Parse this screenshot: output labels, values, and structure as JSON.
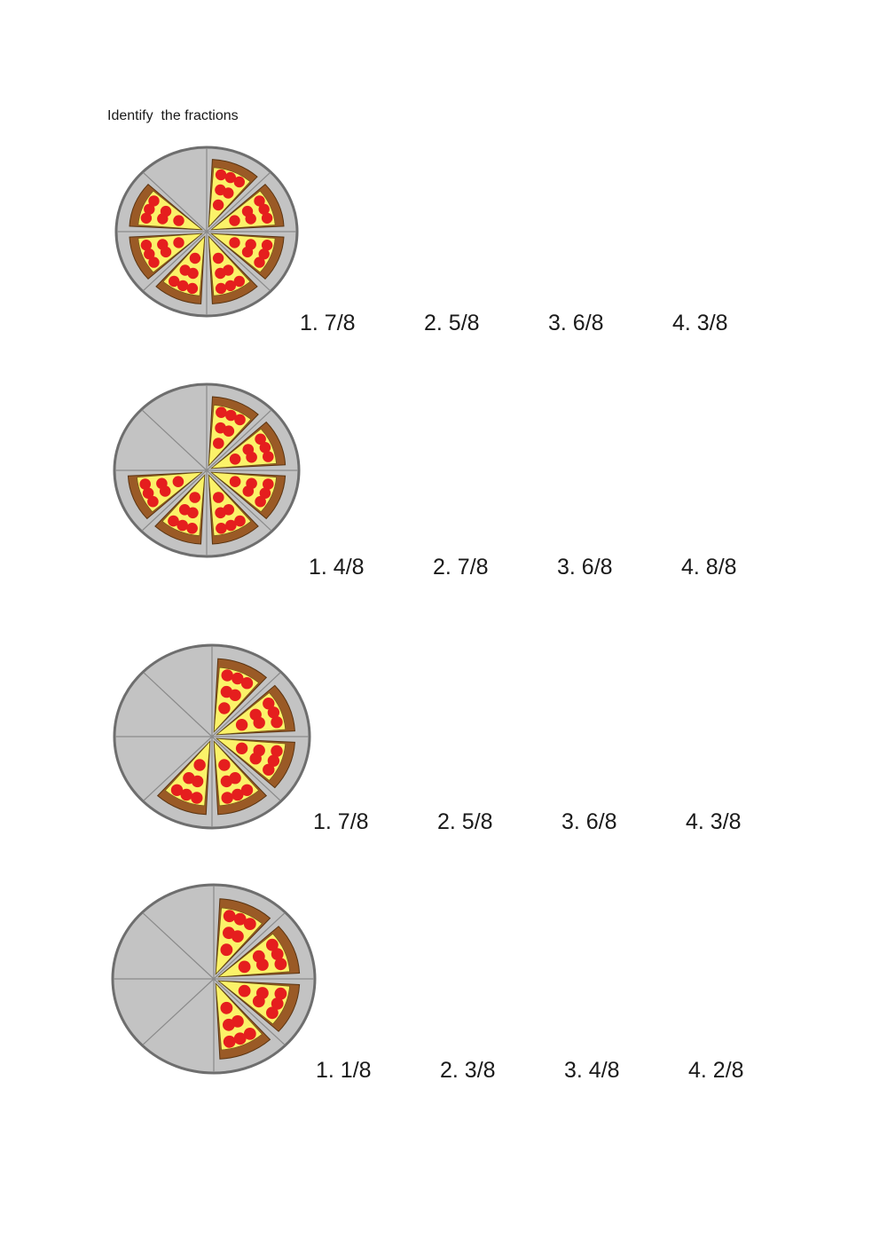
{
  "instructions": "Identify  the fractions",
  "colors": {
    "plate_fill": "#c3c3c3",
    "plate_edge": "#6e6e6e",
    "crust": "#9a5a26",
    "cheese": "#fbf269",
    "pepperoni": "#e51e1e"
  },
  "questions": [
    {
      "pizza": {
        "total_slices": 8,
        "slices_present": 7
      },
      "options": [
        "1. 7/8",
        "2. 5/8",
        "3. 6/8",
        "4. 3/8"
      ]
    },
    {
      "pizza": {
        "total_slices": 8,
        "slices_present": 6
      },
      "options": [
        "1. 4/8",
        "2. 7/8",
        "3. 6/8",
        "4. 8/8"
      ]
    },
    {
      "pizza": {
        "total_slices": 8,
        "slices_present": 5
      },
      "options": [
        "1. 7/8",
        "2. 5/8",
        "3. 6/8",
        "4. 3/8"
      ]
    },
    {
      "pizza": {
        "total_slices": 8,
        "slices_present": 4
      },
      "options": [
        "1. 1/8",
        "2. 3/8",
        "3. 4/8",
        "4. 2/8"
      ]
    }
  ]
}
